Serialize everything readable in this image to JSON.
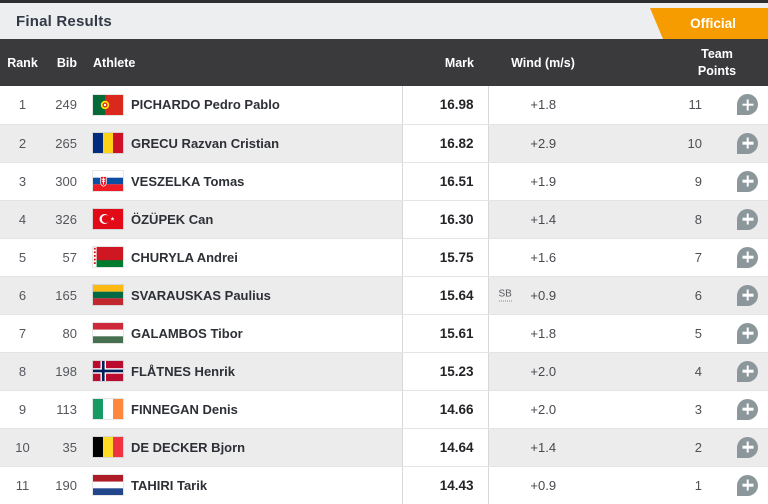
{
  "header": {
    "title": "Final Results",
    "status_badge": "Official"
  },
  "table": {
    "columns": {
      "rank": "Rank",
      "bib": "Bib",
      "athlete": "Athlete",
      "mark": "Mark",
      "wind": "Wind (m/s)",
      "team_points": "Team Points"
    },
    "rows": [
      {
        "rank": "1",
        "bib": "249",
        "country": "por",
        "athlete": "PICHARDO Pedro Pablo",
        "mark": "16.98",
        "note": "",
        "wind": "+1.8",
        "points": "11"
      },
      {
        "rank": "2",
        "bib": "265",
        "country": "rou",
        "athlete": "GRECU Razvan Cristian",
        "mark": "16.82",
        "note": "",
        "wind": "+2.9",
        "points": "10"
      },
      {
        "rank": "3",
        "bib": "300",
        "country": "svk",
        "athlete": "VESZELKA Tomas",
        "mark": "16.51",
        "note": "",
        "wind": "+1.9",
        "points": "9"
      },
      {
        "rank": "4",
        "bib": "326",
        "country": "tur",
        "athlete": "ÖZÜPEK Can",
        "mark": "16.30",
        "note": "",
        "wind": "+1.4",
        "points": "8"
      },
      {
        "rank": "5",
        "bib": "57",
        "country": "blr",
        "athlete": "CHURYLA Andrei",
        "mark": "15.75",
        "note": "",
        "wind": "+1.6",
        "points": "7"
      },
      {
        "rank": "6",
        "bib": "165",
        "country": "ltu",
        "athlete": "SVARAUSKAS Paulius",
        "mark": "15.64",
        "note": "SB",
        "wind": "+0.9",
        "points": "6"
      },
      {
        "rank": "7",
        "bib": "80",
        "country": "hun",
        "athlete": "GALAMBOS Tibor",
        "mark": "15.61",
        "note": "",
        "wind": "+1.8",
        "points": "5"
      },
      {
        "rank": "8",
        "bib": "198",
        "country": "nor",
        "athlete": "FLÅTNES Henrik",
        "mark": "15.23",
        "note": "",
        "wind": "+2.0",
        "points": "4"
      },
      {
        "rank": "9",
        "bib": "113",
        "country": "irl",
        "athlete": "FINNEGAN Denis",
        "mark": "14.66",
        "note": "",
        "wind": "+2.0",
        "points": "3"
      },
      {
        "rank": "10",
        "bib": "35",
        "country": "bel",
        "athlete": "DE DECKER Bjorn",
        "mark": "14.64",
        "note": "",
        "wind": "+1.4",
        "points": "2"
      },
      {
        "rank": "11",
        "bib": "190",
        "country": "ned",
        "athlete": "TAHIRI Tarik",
        "mark": "14.43",
        "note": "",
        "wind": "+0.9",
        "points": "1"
      }
    ]
  },
  "icons": {
    "flag": "country-flag-icon",
    "expand": "plus-icon"
  },
  "colors": {
    "accent_orange": "#f79c00",
    "header_bg": "#3a3a3c",
    "title_bar_bg": "#edeef0",
    "row_alt_bg": "#ececec",
    "plus_icon": "#8c979b"
  }
}
